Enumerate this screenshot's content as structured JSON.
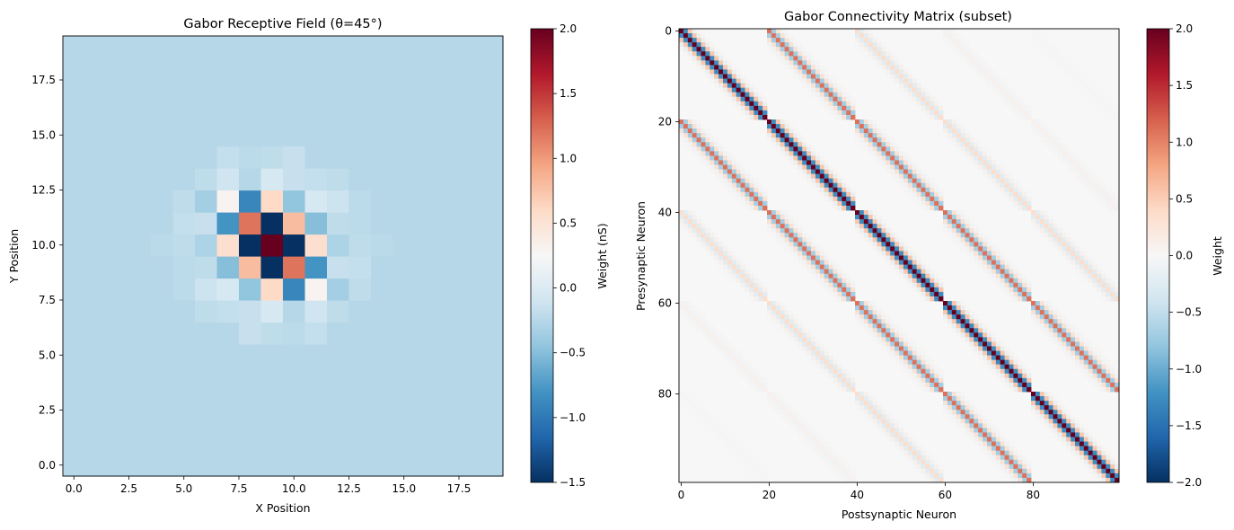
{
  "colors": {
    "cmap_stops": [
      "#053061",
      "#2166ac",
      "#4393c3",
      "#92c5de",
      "#d1e5f0",
      "#f7f7f7",
      "#fddbc7",
      "#f4a582",
      "#d6604d",
      "#b2182b",
      "#67001f"
    ]
  },
  "chart_data": [
    {
      "type": "heatmap",
      "title": "Gabor Receptive Field (θ=45°)",
      "xlabel": "X Position",
      "ylabel": "Y Position",
      "xlim": [
        -0.5,
        19.5
      ],
      "ylim": [
        -0.5,
        19.5
      ],
      "xticks": [
        "0.0",
        "2.5",
        "5.0",
        "7.5",
        "10.0",
        "12.5",
        "15.0",
        "17.5"
      ],
      "yticks": [
        "0.0",
        "2.5",
        "5.0",
        "7.5",
        "10.0",
        "12.5",
        "15.0",
        "17.5"
      ],
      "xtick_values": [
        0,
        2.5,
        5,
        7.5,
        10,
        12.5,
        15,
        17.5
      ],
      "ytick_values": [
        0,
        2.5,
        5,
        7.5,
        10,
        12.5,
        15,
        17.5
      ],
      "grid_size": 20,
      "background_value": -0.25,
      "origin": "lower",
      "cells": [
        [
          9,
          10,
          2.0
        ],
        [
          8,
          10,
          -1.5
        ],
        [
          10,
          10,
          -1.5
        ],
        [
          9,
          9,
          -1.5
        ],
        [
          9,
          11,
          -1.5
        ],
        [
          8,
          11,
          1.2
        ],
        [
          10,
          9,
          1.2
        ],
        [
          8,
          9,
          0.8
        ],
        [
          10,
          11,
          0.8
        ],
        [
          7,
          10,
          0.55
        ],
        [
          11,
          10,
          0.55
        ],
        [
          9,
          8,
          0.6
        ],
        [
          9,
          12,
          0.6
        ],
        [
          7,
          11,
          -0.8
        ],
        [
          11,
          9,
          -0.8
        ],
        [
          8,
          12,
          -0.9
        ],
        [
          10,
          8,
          -0.9
        ],
        [
          7,
          9,
          -0.5
        ],
        [
          11,
          11,
          -0.5
        ],
        [
          8,
          8,
          -0.45
        ],
        [
          10,
          12,
          -0.45
        ],
        [
          7,
          12,
          0.3
        ],
        [
          11,
          8,
          0.3
        ],
        [
          6,
          11,
          -0.15
        ],
        [
          12,
          9,
          -0.15
        ],
        [
          6,
          10,
          -0.3
        ],
        [
          12,
          10,
          -0.3
        ],
        [
          6,
          9,
          -0.2
        ],
        [
          12,
          11,
          -0.2
        ],
        [
          9,
          13,
          -0.05
        ],
        [
          9,
          7,
          -0.05
        ],
        [
          8,
          13,
          -0.25
        ],
        [
          10,
          7,
          -0.25
        ],
        [
          10,
          13,
          -0.15
        ],
        [
          8,
          7,
          -0.15
        ],
        [
          7,
          13,
          -0.1
        ],
        [
          11,
          7,
          -0.1
        ],
        [
          11,
          12,
          -0.05
        ],
        [
          7,
          8,
          -0.05
        ],
        [
          12,
          12,
          -0.12
        ],
        [
          6,
          8,
          -0.12
        ],
        [
          12,
          8,
          -0.35
        ],
        [
          6,
          12,
          -0.35
        ],
        [
          8,
          6,
          -0.15
        ],
        [
          10,
          14,
          -0.15
        ],
        [
          9,
          6,
          -0.2
        ],
        [
          9,
          14,
          -0.2
        ],
        [
          11,
          6,
          -0.18
        ],
        [
          7,
          14,
          -0.18
        ],
        [
          10,
          6,
          -0.22
        ],
        [
          8,
          14,
          -0.22
        ],
        [
          13,
          10,
          -0.2
        ],
        [
          5,
          10,
          -0.2
        ],
        [
          13,
          11,
          -0.22
        ],
        [
          5,
          9,
          -0.22
        ],
        [
          13,
          9,
          -0.18
        ],
        [
          5,
          11,
          -0.18
        ],
        [
          12,
          13,
          -0.2
        ],
        [
          6,
          7,
          -0.2
        ],
        [
          11,
          13,
          -0.18
        ],
        [
          7,
          7,
          -0.18
        ],
        [
          12,
          7,
          -0.2
        ],
        [
          6,
          13,
          -0.2
        ],
        [
          13,
          12,
          -0.22
        ],
        [
          5,
          8,
          -0.22
        ],
        [
          13,
          8,
          -0.2
        ],
        [
          5,
          12,
          -0.2
        ],
        [
          14,
          10,
          -0.23
        ],
        [
          4,
          10,
          -0.23
        ]
      ],
      "colorbar": {
        "label": "Weight (nS)",
        "vmin": -1.5,
        "vmax": 2.0,
        "ticks": [
          "−1.5",
          "−1.0",
          "−0.5",
          "0.0",
          "0.5",
          "1.0",
          "1.5",
          "2.0"
        ],
        "tick_values": [
          -1.5,
          -1.0,
          -0.5,
          0.0,
          0.5,
          1.0,
          1.5,
          2.0
        ]
      }
    },
    {
      "type": "heatmap",
      "title": "Gabor Connectivity Matrix (subset)",
      "xlabel": "Postsynaptic Neuron",
      "ylabel": "Presynaptic Neuron",
      "size": 100,
      "block": 20,
      "origin": "upper",
      "xticks": [
        "0",
        "20",
        "40",
        "60",
        "80"
      ],
      "yticks": [
        "0",
        "20",
        "40",
        "60",
        "80"
      ],
      "xtick_values": [
        0,
        20,
        40,
        60,
        80
      ],
      "ytick_values": [
        0,
        20,
        40,
        60,
        80
      ],
      "block_amplitudes": [
        1.0,
        0.55,
        0.18,
        0.05,
        0.02
      ],
      "row_offset_values": [
        2.0,
        -1.25,
        0.55,
        -0.15,
        0.05
      ],
      "colorbar": {
        "label": "Weight",
        "vmin": -2.0,
        "vmax": 2.0,
        "ticks": [
          "−2.0",
          "−1.5",
          "−1.0",
          "−0.5",
          "0.0",
          "0.5",
          "1.0",
          "1.5",
          "2.0"
        ],
        "tick_values": [
          -2.0,
          -1.5,
          -1.0,
          -0.5,
          0.0,
          0.5,
          1.0,
          1.5,
          2.0
        ]
      }
    }
  ]
}
